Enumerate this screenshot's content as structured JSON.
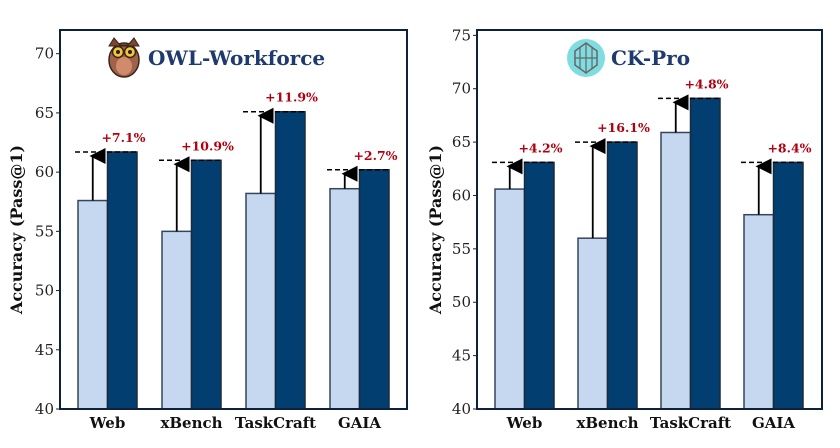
{
  "chart_data": [
    {
      "type": "bar",
      "title": "OWL-Workforce",
      "logo": "owl-icon",
      "ylabel": "Accuracy (Pass@1)",
      "ylim": [
        40,
        72
      ],
      "yticks": [
        40,
        45,
        50,
        55,
        60,
        65,
        70
      ],
      "categories": [
        "Web",
        "xBench",
        "TaskCraft",
        "GAIA"
      ],
      "series": [
        {
          "name": "baseline",
          "color": "#c6d8ef",
          "values": [
            57.6,
            55.0,
            58.2,
            58.6
          ]
        },
        {
          "name": "improved",
          "color": "#023e70",
          "values": [
            61.7,
            61.0,
            65.1,
            60.2
          ]
        }
      ],
      "gain_labels": [
        "+7.1%",
        "+10.9%",
        "+11.9%",
        "+2.7%"
      ]
    },
    {
      "type": "bar",
      "title": "CK-Pro",
      "logo": "ck-pro-icon",
      "ylabel": "Accuracy (Pass@1)",
      "ylim": [
        40,
        75.5
      ],
      "yticks": [
        40,
        45,
        50,
        55,
        60,
        65,
        70,
        75
      ],
      "categories": [
        "Web",
        "xBench",
        "TaskCraft",
        "GAIA"
      ],
      "series": [
        {
          "name": "baseline",
          "color": "#c6d8ef",
          "values": [
            60.6,
            56.0,
            65.9,
            58.2
          ]
        },
        {
          "name": "improved",
          "color": "#023e70",
          "values": [
            63.1,
            65.0,
            69.1,
            63.1
          ]
        }
      ],
      "gain_labels": [
        "+4.2%",
        "+16.1%",
        "+4.8%",
        "+8.4%"
      ]
    }
  ]
}
